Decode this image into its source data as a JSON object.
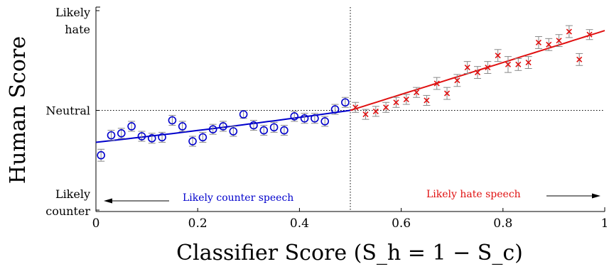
{
  "chart_data": {
    "type": "scatter",
    "xlabel": "Classifier Score (S_h = 1 − S_c)",
    "ylabel": "Human Score",
    "xlim": [
      0,
      1
    ],
    "ylim": [
      -1,
      1
    ],
    "x_ticks": [
      {
        "value": 0,
        "label": "0"
      },
      {
        "value": 0.2,
        "label": "0.2"
      },
      {
        "value": 0.4,
        "label": "0.4"
      },
      {
        "value": 0.6,
        "label": "0.6"
      },
      {
        "value": 0.8,
        "label": "0.8"
      },
      {
        "value": 1,
        "label": "1"
      }
    ],
    "y_ticks": [
      {
        "value": 1,
        "line1": "Likely",
        "line2": "hate"
      },
      {
        "value": 0,
        "line1": "Neutral",
        "line2": ""
      },
      {
        "value": -1,
        "line1": "Likely",
        "line2": "counter"
      }
    ],
    "reference_lines": {
      "vertical_x": 0.5,
      "horizontal_y": 0
    },
    "annotations": {
      "left": "Likely counter speech",
      "right": "Likely hate speech"
    },
    "colors": {
      "counter": "#0000cc",
      "hate": "#e01010",
      "errorbar": "#888888",
      "axis": "#000000"
    },
    "series": [
      {
        "marker": "circle",
        "color": "#0000cc",
        "points": [
          {
            "x": 0.01,
            "y": -0.45,
            "err": 0.06
          },
          {
            "x": 0.03,
            "y": -0.25,
            "err": 0.05
          },
          {
            "x": 0.05,
            "y": -0.23,
            "err": 0.05
          },
          {
            "x": 0.07,
            "y": -0.16,
            "err": 0.05
          },
          {
            "x": 0.09,
            "y": -0.26,
            "err": 0.05
          },
          {
            "x": 0.11,
            "y": -0.28,
            "err": 0.05
          },
          {
            "x": 0.13,
            "y": -0.27,
            "err": 0.05
          },
          {
            "x": 0.15,
            "y": -0.1,
            "err": 0.05
          },
          {
            "x": 0.17,
            "y": -0.16,
            "err": 0.05
          },
          {
            "x": 0.19,
            "y": -0.31,
            "err": 0.05
          },
          {
            "x": 0.21,
            "y": -0.27,
            "err": 0.05
          },
          {
            "x": 0.23,
            "y": -0.19,
            "err": 0.05
          },
          {
            "x": 0.25,
            "y": -0.16,
            "err": 0.05
          },
          {
            "x": 0.27,
            "y": -0.21,
            "err": 0.05
          },
          {
            "x": 0.29,
            "y": -0.04,
            "err": 0.04
          },
          {
            "x": 0.31,
            "y": -0.15,
            "err": 0.05
          },
          {
            "x": 0.33,
            "y": -0.2,
            "err": 0.05
          },
          {
            "x": 0.35,
            "y": -0.17,
            "err": 0.05
          },
          {
            "x": 0.37,
            "y": -0.2,
            "err": 0.05
          },
          {
            "x": 0.39,
            "y": -0.06,
            "err": 0.05
          },
          {
            "x": 0.41,
            "y": -0.08,
            "err": 0.05
          },
          {
            "x": 0.43,
            "y": -0.08,
            "err": 0.05
          },
          {
            "x": 0.45,
            "y": -0.11,
            "err": 0.05
          },
          {
            "x": 0.47,
            "y": 0.01,
            "err": 0.05
          },
          {
            "x": 0.49,
            "y": 0.08,
            "err": 0.05
          }
        ]
      },
      {
        "marker": "x",
        "color": "#e01010",
        "points": [
          {
            "x": 0.51,
            "y": 0.03,
            "err": 0.05
          },
          {
            "x": 0.53,
            "y": -0.04,
            "err": 0.05
          },
          {
            "x": 0.55,
            "y": -0.01,
            "err": 0.05
          },
          {
            "x": 0.57,
            "y": 0.03,
            "err": 0.05
          },
          {
            "x": 0.59,
            "y": 0.08,
            "err": 0.05
          },
          {
            "x": 0.61,
            "y": 0.11,
            "err": 0.05
          },
          {
            "x": 0.63,
            "y": 0.18,
            "err": 0.05
          },
          {
            "x": 0.65,
            "y": 0.1,
            "err": 0.05
          },
          {
            "x": 0.67,
            "y": 0.27,
            "err": 0.06
          },
          {
            "x": 0.69,
            "y": 0.17,
            "err": 0.06
          },
          {
            "x": 0.71,
            "y": 0.3,
            "err": 0.06
          },
          {
            "x": 0.73,
            "y": 0.43,
            "err": 0.06
          },
          {
            "x": 0.75,
            "y": 0.38,
            "err": 0.06
          },
          {
            "x": 0.77,
            "y": 0.43,
            "err": 0.06
          },
          {
            "x": 0.79,
            "y": 0.55,
            "err": 0.06
          },
          {
            "x": 0.81,
            "y": 0.46,
            "err": 0.08
          },
          {
            "x": 0.83,
            "y": 0.46,
            "err": 0.06
          },
          {
            "x": 0.85,
            "y": 0.48,
            "err": 0.06
          },
          {
            "x": 0.87,
            "y": 0.68,
            "err": 0.06
          },
          {
            "x": 0.89,
            "y": 0.66,
            "err": 0.06
          },
          {
            "x": 0.91,
            "y": 0.7,
            "err": 0.06
          },
          {
            "x": 0.93,
            "y": 0.79,
            "err": 0.06
          },
          {
            "x": 0.95,
            "y": 0.51,
            "err": 0.06
          },
          {
            "x": 0.97,
            "y": 0.76,
            "err": 0.05
          }
        ]
      }
    ],
    "fits": [
      {
        "color": "#0000cc",
        "x": [
          0,
          0.5
        ],
        "y": [
          -0.32,
          0.0
        ],
        "curve": 0.04
      },
      {
        "color": "#e01010",
        "x": [
          0.5,
          1.0
        ],
        "y": [
          0.0,
          0.8
        ],
        "curve": 0
      }
    ]
  }
}
